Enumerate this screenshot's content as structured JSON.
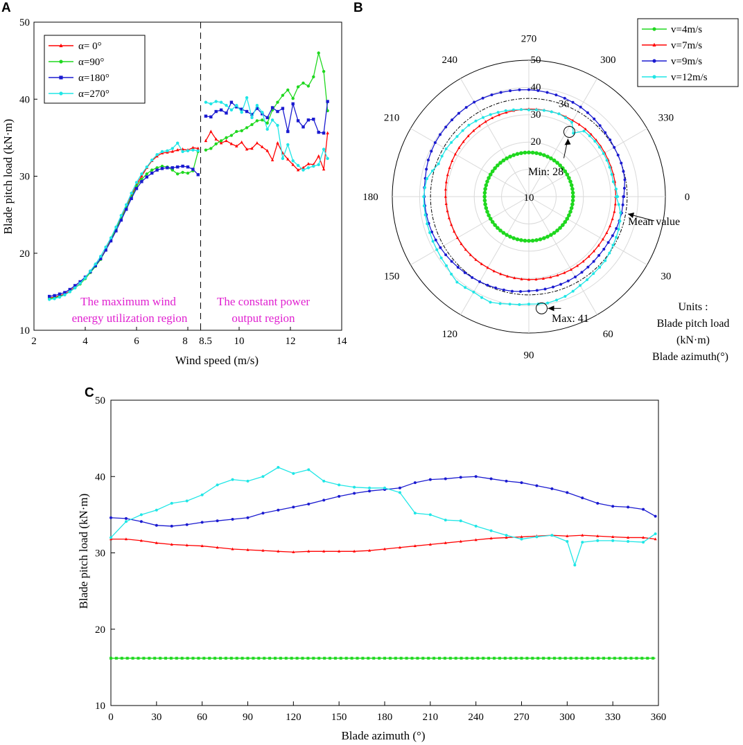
{
  "colors": {
    "red": "#ff0000",
    "green": "#1fd81f",
    "blue": "#1a1ad0",
    "cyan": "#1fe6e6",
    "region": "#e020d0",
    "axis": "#000000",
    "grid": "#d9d9d9"
  },
  "chart_data": [
    {
      "type": "line",
      "panel": "A",
      "xlabel": "Wind speed (m/s)",
      "ylabel": "Blade pitch load (kN·m)",
      "xlim": [
        2,
        14
      ],
      "ylim": [
        10,
        50
      ],
      "xtick_labels": [
        "2",
        "4",
        "6",
        "8",
        "8.5",
        "10",
        "12",
        "14"
      ],
      "ytick_labels": [
        "10",
        "20",
        "30",
        "40",
        "50"
      ],
      "divider_x": 8.5,
      "regions": [
        {
          "lines": [
            "The maximum wind",
            "energy utilization region"
          ]
        },
        {
          "lines": [
            "The constant power",
            "output region"
          ]
        }
      ],
      "series": [
        {
          "name": "α= 0°",
          "color_key": "red",
          "marker": "triangle",
          "x": [
            2.6,
            2.8,
            3.0,
            3.2,
            3.4,
            3.6,
            3.8,
            4.0,
            4.2,
            4.4,
            4.6,
            4.8,
            5.0,
            5.2,
            5.4,
            5.6,
            5.8,
            6.0,
            6.2,
            6.4,
            6.6,
            6.8,
            7.0,
            7.2,
            7.4,
            7.6,
            7.8,
            8.0,
            8.2,
            8.4,
            8.7,
            8.9,
            9.1,
            9.3,
            9.5,
            9.7,
            9.9,
            10.1,
            10.3,
            10.5,
            10.7,
            10.9,
            11.1,
            11.3,
            11.5,
            11.7,
            11.9,
            12.1,
            12.3,
            12.5,
            12.7,
            12.9,
            13.1,
            13.3,
            13.45
          ],
          "y": [
            14.2,
            14.3,
            14.5,
            14.7,
            15.1,
            15.6,
            16.1,
            16.8,
            17.6,
            18.4,
            19.3,
            20.5,
            21.8,
            23.2,
            24.6,
            26.0,
            27.5,
            28.9,
            30.0,
            31.1,
            32.0,
            32.6,
            33.0,
            33.1,
            33.2,
            33.4,
            33.5,
            33.4,
            33.7,
            33.6,
            34.6,
            35.8,
            34.8,
            34.3,
            34.6,
            34.2,
            33.9,
            34.4,
            33.5,
            33.6,
            34.3,
            33.8,
            33.3,
            32.1,
            34.3,
            33.0,
            32.2,
            31.5,
            30.8,
            31.1,
            31.6,
            31.5,
            32.6,
            30.9,
            35.6
          ]
        },
        {
          "name": "α=90°",
          "color_key": "green",
          "marker": "dot",
          "x": [
            2.6,
            2.8,
            3.0,
            3.2,
            3.4,
            3.6,
            3.8,
            4.0,
            4.2,
            4.4,
            4.6,
            4.8,
            5.0,
            5.2,
            5.4,
            5.6,
            5.8,
            6.0,
            6.2,
            6.4,
            6.6,
            6.8,
            7.0,
            7.2,
            7.4,
            7.6,
            7.8,
            8.0,
            8.2,
            8.4,
            8.7,
            8.9,
            9.1,
            9.3,
            9.5,
            9.7,
            9.9,
            10.1,
            10.3,
            10.5,
            10.7,
            10.9,
            11.1,
            11.3,
            11.5,
            11.7,
            11.9,
            12.1,
            12.3,
            12.5,
            12.7,
            12.9,
            13.1,
            13.3,
            13.45
          ],
          "y": [
            14.1,
            14.2,
            14.4,
            14.6,
            15.0,
            15.5,
            16.0,
            16.7,
            17.5,
            18.3,
            19.2,
            20.4,
            21.7,
            23.1,
            24.5,
            25.9,
            27.3,
            28.7,
            29.6,
            30.3,
            30.8,
            31.1,
            31.3,
            31.2,
            30.8,
            30.3,
            30.5,
            30.4,
            30.7,
            33.2,
            33.4,
            33.6,
            34.2,
            34.6,
            35.0,
            35.3,
            35.8,
            35.9,
            36.3,
            36.7,
            37.2,
            37.3,
            36.9,
            38.6,
            39.6,
            40.5,
            41.2,
            40.1,
            41.6,
            42.1,
            41.7,
            42.9,
            46.0,
            43.6,
            38.5
          ]
        },
        {
          "name": "α=180°",
          "color_key": "blue",
          "marker": "square",
          "x": [
            2.6,
            2.8,
            3.0,
            3.2,
            3.4,
            3.6,
            3.8,
            4.0,
            4.2,
            4.4,
            4.6,
            4.8,
            5.0,
            5.2,
            5.4,
            5.6,
            5.8,
            6.0,
            6.2,
            6.4,
            6.6,
            6.8,
            7.0,
            7.2,
            7.4,
            7.6,
            7.8,
            8.0,
            8.2,
            8.4,
            8.7,
            8.9,
            9.1,
            9.3,
            9.5,
            9.7,
            9.9,
            10.1,
            10.3,
            10.5,
            10.7,
            10.9,
            11.1,
            11.3,
            11.5,
            11.7,
            11.9,
            12.1,
            12.3,
            12.5,
            12.7,
            12.9,
            13.1,
            13.3,
            13.45
          ],
          "y": [
            14.4,
            14.5,
            14.7,
            14.9,
            15.3,
            15.8,
            16.3,
            16.9,
            17.6,
            18.4,
            19.3,
            20.4,
            21.6,
            22.9,
            24.3,
            25.7,
            27.1,
            28.4,
            29.3,
            29.9,
            30.4,
            30.8,
            31.0,
            31.1,
            31.1,
            31.2,
            31.3,
            31.2,
            30.9,
            30.2,
            37.8,
            37.7,
            38.4,
            38.6,
            38.2,
            39.6,
            39.0,
            38.7,
            38.4,
            38.0,
            38.8,
            38.1,
            37.6,
            38.9,
            38.4,
            38.8,
            35.8,
            39.4,
            37.2,
            36.4,
            37.3,
            37.4,
            35.7,
            35.6,
            39.7
          ]
        },
        {
          "name": "α=270°",
          "color_key": "cyan",
          "marker": "dot",
          "x": [
            2.6,
            2.8,
            3.0,
            3.2,
            3.4,
            3.6,
            3.8,
            4.0,
            4.2,
            4.4,
            4.6,
            4.8,
            5.0,
            5.2,
            5.4,
            5.6,
            5.8,
            6.0,
            6.2,
            6.4,
            6.6,
            6.8,
            7.0,
            7.2,
            7.4,
            7.6,
            7.8,
            8.0,
            8.2,
            8.4,
            8.7,
            8.9,
            9.1,
            9.3,
            9.5,
            9.7,
            9.9,
            10.1,
            10.3,
            10.5,
            10.7,
            10.9,
            11.1,
            11.3,
            11.5,
            11.7,
            11.9,
            12.1,
            12.3,
            12.5,
            12.7,
            12.9,
            13.1,
            13.3,
            13.45
          ],
          "y": [
            14.0,
            14.1,
            14.3,
            14.6,
            15.0,
            15.5,
            16.1,
            16.8,
            17.7,
            18.6,
            19.6,
            20.8,
            22.0,
            23.4,
            24.9,
            26.3,
            27.8,
            29.2,
            30.3,
            31.2,
            32.1,
            32.8,
            33.2,
            33.3,
            33.6,
            34.3,
            33.2,
            33.3,
            33.4,
            33.3,
            39.6,
            39.4,
            39.7,
            39.6,
            39.2,
            38.6,
            39.2,
            38.3,
            40.2,
            37.6,
            39.2,
            38.3,
            36.1,
            37.3,
            36.6,
            32.3,
            34.1,
            32.0,
            31.4,
            30.8,
            31.1,
            31.3,
            31.5,
            33.5,
            32.3
          ]
        }
      ]
    },
    {
      "type": "polar",
      "panel": "B",
      "r_ticks": [
        "10",
        "20",
        "30",
        "40",
        "50"
      ],
      "r_range": [
        0,
        50
      ],
      "angle_labels": [
        "0",
        "30",
        "60",
        "90",
        "120",
        "150",
        "180",
        "210",
        "240",
        "270",
        "300",
        "330"
      ],
      "mean_value_radius": 36,
      "mean_value_label": "36",
      "annotations": {
        "min": {
          "text": "Min:  28",
          "azimuth": 302,
          "value": 28
        },
        "max": {
          "text": "Max:  41",
          "azimuth": 87,
          "value": 41
        },
        "mean": {
          "text": "Mean value"
        }
      },
      "units_note": [
        "Units :",
        "Blade pitch load",
        "(kN·m)",
        "Blade azimuth(°)"
      ],
      "series_names": [
        "v=4m/s",
        "v=7m/s",
        "v=9m/s",
        "v=12m/s"
      ]
    },
    {
      "type": "line",
      "panel": "C",
      "xlabel": "Blade azimuth (°)",
      "ylabel": "Blade pitch load (kN·m)",
      "xlim": [
        0,
        360
      ],
      "ylim": [
        10,
        50
      ],
      "xtick_labels": [
        "0",
        "30",
        "60",
        "90",
        "120",
        "150",
        "180",
        "210",
        "240",
        "270",
        "300",
        "330",
        "360"
      ],
      "ytick_labels": [
        "10",
        "20",
        "30",
        "40",
        "50"
      ],
      "series": [
        {
          "name": "v=4m/s",
          "color_key": "green",
          "marker": "square",
          "x": [
            0,
            358
          ],
          "y": [
            16.2,
            16.2
          ]
        },
        {
          "name": "v=7m/s",
          "color_key": "red",
          "marker": "triangle",
          "x": [
            0,
            10,
            20,
            30,
            40,
            50,
            60,
            70,
            80,
            90,
            100,
            110,
            120,
            130,
            140,
            150,
            160,
            170,
            180,
            190,
            200,
            210,
            220,
            230,
            240,
            250,
            260,
            270,
            280,
            290,
            300,
            310,
            320,
            330,
            340,
            350,
            358
          ],
          "y": [
            31.8,
            31.8,
            31.6,
            31.3,
            31.1,
            31.0,
            30.9,
            30.7,
            30.5,
            30.4,
            30.3,
            30.2,
            30.1,
            30.2,
            30.2,
            30.2,
            30.2,
            30.3,
            30.5,
            30.7,
            30.9,
            31.1,
            31.3,
            31.5,
            31.7,
            31.9,
            32.0,
            32.1,
            32.2,
            32.3,
            32.2,
            32.3,
            32.2,
            32.1,
            32.0,
            32.0,
            31.8
          ]
        },
        {
          "name": "v=9m/s",
          "color_key": "blue",
          "marker": "dot",
          "x": [
            0,
            10,
            20,
            30,
            40,
            50,
            60,
            70,
            80,
            90,
            100,
            110,
            120,
            130,
            140,
            150,
            160,
            170,
            180,
            190,
            200,
            210,
            220,
            230,
            240,
            250,
            260,
            270,
            280,
            290,
            300,
            310,
            320,
            330,
            340,
            350,
            358
          ],
          "y": [
            34.6,
            34.5,
            34.1,
            33.6,
            33.5,
            33.7,
            34.0,
            34.2,
            34.4,
            34.6,
            35.2,
            35.6,
            36.0,
            36.4,
            36.9,
            37.4,
            37.8,
            38.1,
            38.3,
            38.5,
            39.2,
            39.6,
            39.7,
            39.9,
            40.0,
            39.7,
            39.4,
            39.2,
            38.8,
            38.4,
            37.9,
            37.2,
            36.5,
            36.1,
            36.0,
            35.7,
            34.8
          ]
        },
        {
          "name": "v=12m/s",
          "color_key": "cyan",
          "marker": "dot",
          "x": [
            0,
            10,
            20,
            30,
            40,
            50,
            60,
            70,
            80,
            90,
            100,
            110,
            120,
            130,
            140,
            150,
            160,
            170,
            180,
            190,
            200,
            210,
            220,
            230,
            240,
            250,
            260,
            270,
            280,
            290,
            300,
            305,
            310,
            320,
            330,
            340,
            350,
            358
          ],
          "y": [
            32.0,
            34.1,
            35.0,
            35.6,
            36.5,
            36.8,
            37.6,
            38.9,
            39.6,
            39.4,
            40.0,
            41.2,
            40.4,
            40.9,
            39.4,
            38.9,
            38.6,
            38.5,
            38.5,
            37.9,
            35.2,
            35.0,
            34.3,
            34.2,
            33.5,
            32.9,
            32.3,
            31.8,
            32.1,
            32.3,
            31.5,
            28.4,
            31.4,
            31.6,
            31.6,
            31.5,
            31.4,
            32.5
          ]
        }
      ]
    }
  ]
}
